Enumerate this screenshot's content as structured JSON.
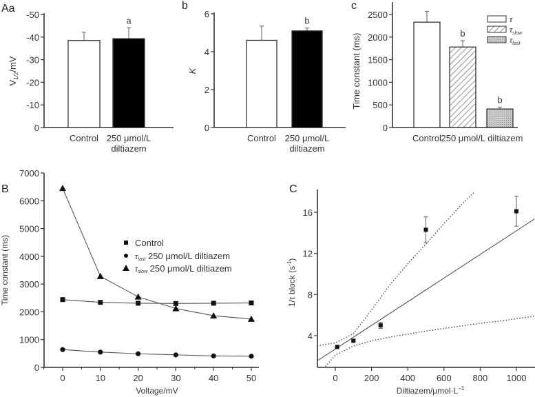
{
  "chart_data": [
    {
      "panel": "Aa",
      "type": "bar",
      "title": "",
      "xlabel": "",
      "ylabel": "V1/2/mV",
      "ylabel_main": "V",
      "ylabel_sub": "1/2",
      "ylabel_rest": "/mV",
      "ylim": [
        0,
        -50
      ],
      "yticks": [
        0,
        -10,
        -20,
        -30,
        -40,
        -50
      ],
      "categories": [
        "Control",
        "250 μmol/L diltiazem"
      ],
      "category_lines": [
        [
          "Control"
        ],
        [
          "250 μmol/L",
          "diltiazem"
        ]
      ],
      "values": [
        -38.5,
        -39.3
      ],
      "errors": [
        3.7,
        4.8
      ],
      "fills": [
        "white",
        "black"
      ],
      "annotations": [
        "",
        "a"
      ],
      "grid": false
    },
    {
      "panel": "b",
      "type": "bar",
      "xlabel": "",
      "ylabel": "K",
      "ylim": [
        0,
        6
      ],
      "yticks": [
        0,
        2,
        4,
        6
      ],
      "categories": [
        "Control",
        "250 μmol/L diltiazem"
      ],
      "category_lines": [
        [
          "Control"
        ],
        [
          "250 μmol/L",
          "diltiazem"
        ]
      ],
      "values": [
        4.6,
        5.1
      ],
      "errors": [
        0.75,
        0.15
      ],
      "fills": [
        "white",
        "black"
      ],
      "annotations": [
        "",
        "b"
      ],
      "grid": false
    },
    {
      "panel": "c",
      "type": "bar",
      "xlabel": "",
      "ylabel": "Time constant (ms)",
      "ylim": [
        0,
        2500
      ],
      "yticks": [
        0,
        500,
        1000,
        1500,
        2000,
        2500
      ],
      "categories": [
        "Control",
        "250 μmol/L diltiazem"
      ],
      "series": [
        {
          "name": "τ",
          "sub": "",
          "group": "Control",
          "value": 2330,
          "error": 240,
          "fill": "white",
          "annotation": ""
        },
        {
          "name": "τslow",
          "sub": "slow",
          "group": "250 μmol/L diltiazem",
          "value": 1780,
          "error": 140,
          "fill": "hatch",
          "annotation": "b"
        },
        {
          "name": "τfast",
          "sub": "fast",
          "group": "250 μmol/L diltiazem",
          "value": 410,
          "error": 40,
          "fill": "dotted-gray",
          "annotation": "b"
        }
      ],
      "legend": "top-right",
      "grid": false
    },
    {
      "panel": "B",
      "type": "line",
      "xlabel": "Voltage/mV",
      "ylabel": "Time constant (ms)",
      "xlim": [
        -5,
        52
      ],
      "ylim": [
        0,
        7000
      ],
      "xticks": [
        0,
        10,
        20,
        30,
        40,
        50
      ],
      "yticks": [
        0,
        1000,
        2000,
        3000,
        4000,
        5000,
        6000,
        7000
      ],
      "x": [
        0,
        10,
        20,
        30,
        40,
        50
      ],
      "series": [
        {
          "name": "Control",
          "prefix": "",
          "sub": "",
          "marker": "square",
          "values": [
            2440,
            2340,
            2310,
            2300,
            2310,
            2320
          ]
        },
        {
          "name": "τfast 250 μmol/L diltiazem",
          "prefix": "τ",
          "sub": "fast",
          "text": " 250 μmol/L diltiazem",
          "marker": "circle",
          "values": [
            640,
            550,
            490,
            450,
            410,
            400
          ]
        },
        {
          "name": "τslow 250 μmol/L diltiazem",
          "prefix": "τ",
          "sub": "slow",
          "text": " 250 μmol/L diltiazem",
          "marker": "triangle",
          "values": [
            6450,
            3280,
            2540,
            2120,
            1860,
            1740
          ]
        }
      ],
      "legend": "center-right",
      "grid": false
    },
    {
      "panel": "C",
      "type": "scatter",
      "xlabel": "Diltiazem/μmol·L⁻¹",
      "xlabel_main": "Diltiazem/μmol·L",
      "xlabel_sup": "−1",
      "ylabel": "1/τ block (s⁻¹)",
      "ylabel_main": "1/τ block (s",
      "ylabel_sup": "-1",
      "ylabel_end": ")",
      "xlim": [
        -100,
        1100
      ],
      "ylim": [
        1,
        18
      ],
      "xticks": [
        0,
        200,
        400,
        600,
        800,
        1000
      ],
      "yticks": [
        4,
        8,
        12,
        16
      ],
      "points": [
        {
          "x": 10,
          "y": 2.9,
          "err": 0.1
        },
        {
          "x": 100,
          "y": 3.5,
          "err": 0.1
        },
        {
          "x": 250,
          "y": 5.0,
          "err": 0.3
        },
        {
          "x": 500,
          "y": 14.3,
          "err": 1.25
        },
        {
          "x": 1000,
          "y": 16.1,
          "err": 1.45
        }
      ],
      "fit_line": {
        "slope": 0.0115,
        "intercept": 2.7
      },
      "confidence_upper": [
        [
          -100,
          3.0
        ],
        [
          0,
          3.3
        ],
        [
          100,
          4.2
        ],
        [
          200,
          6.5
        ],
        [
          300,
          8.9
        ],
        [
          400,
          11.0
        ],
        [
          500,
          12.9
        ],
        [
          600,
          14.9
        ],
        [
          700,
          16.8
        ],
        [
          770,
          18
        ]
      ],
      "confidence_lower": [
        [
          -55,
          1
        ],
        [
          0,
          2.1
        ],
        [
          100,
          3.0
        ],
        [
          200,
          3.5
        ],
        [
          300,
          3.85
        ],
        [
          400,
          4.15
        ],
        [
          500,
          4.45
        ],
        [
          600,
          4.7
        ],
        [
          700,
          4.95
        ],
        [
          800,
          5.2
        ],
        [
          900,
          5.4
        ],
        [
          1000,
          5.65
        ],
        [
          1100,
          5.9
        ]
      ],
      "grid": false
    }
  ],
  "panel_labels": {
    "Aa": "Aa",
    "b": "b",
    "c": "c",
    "B": "B",
    "C": "C"
  }
}
